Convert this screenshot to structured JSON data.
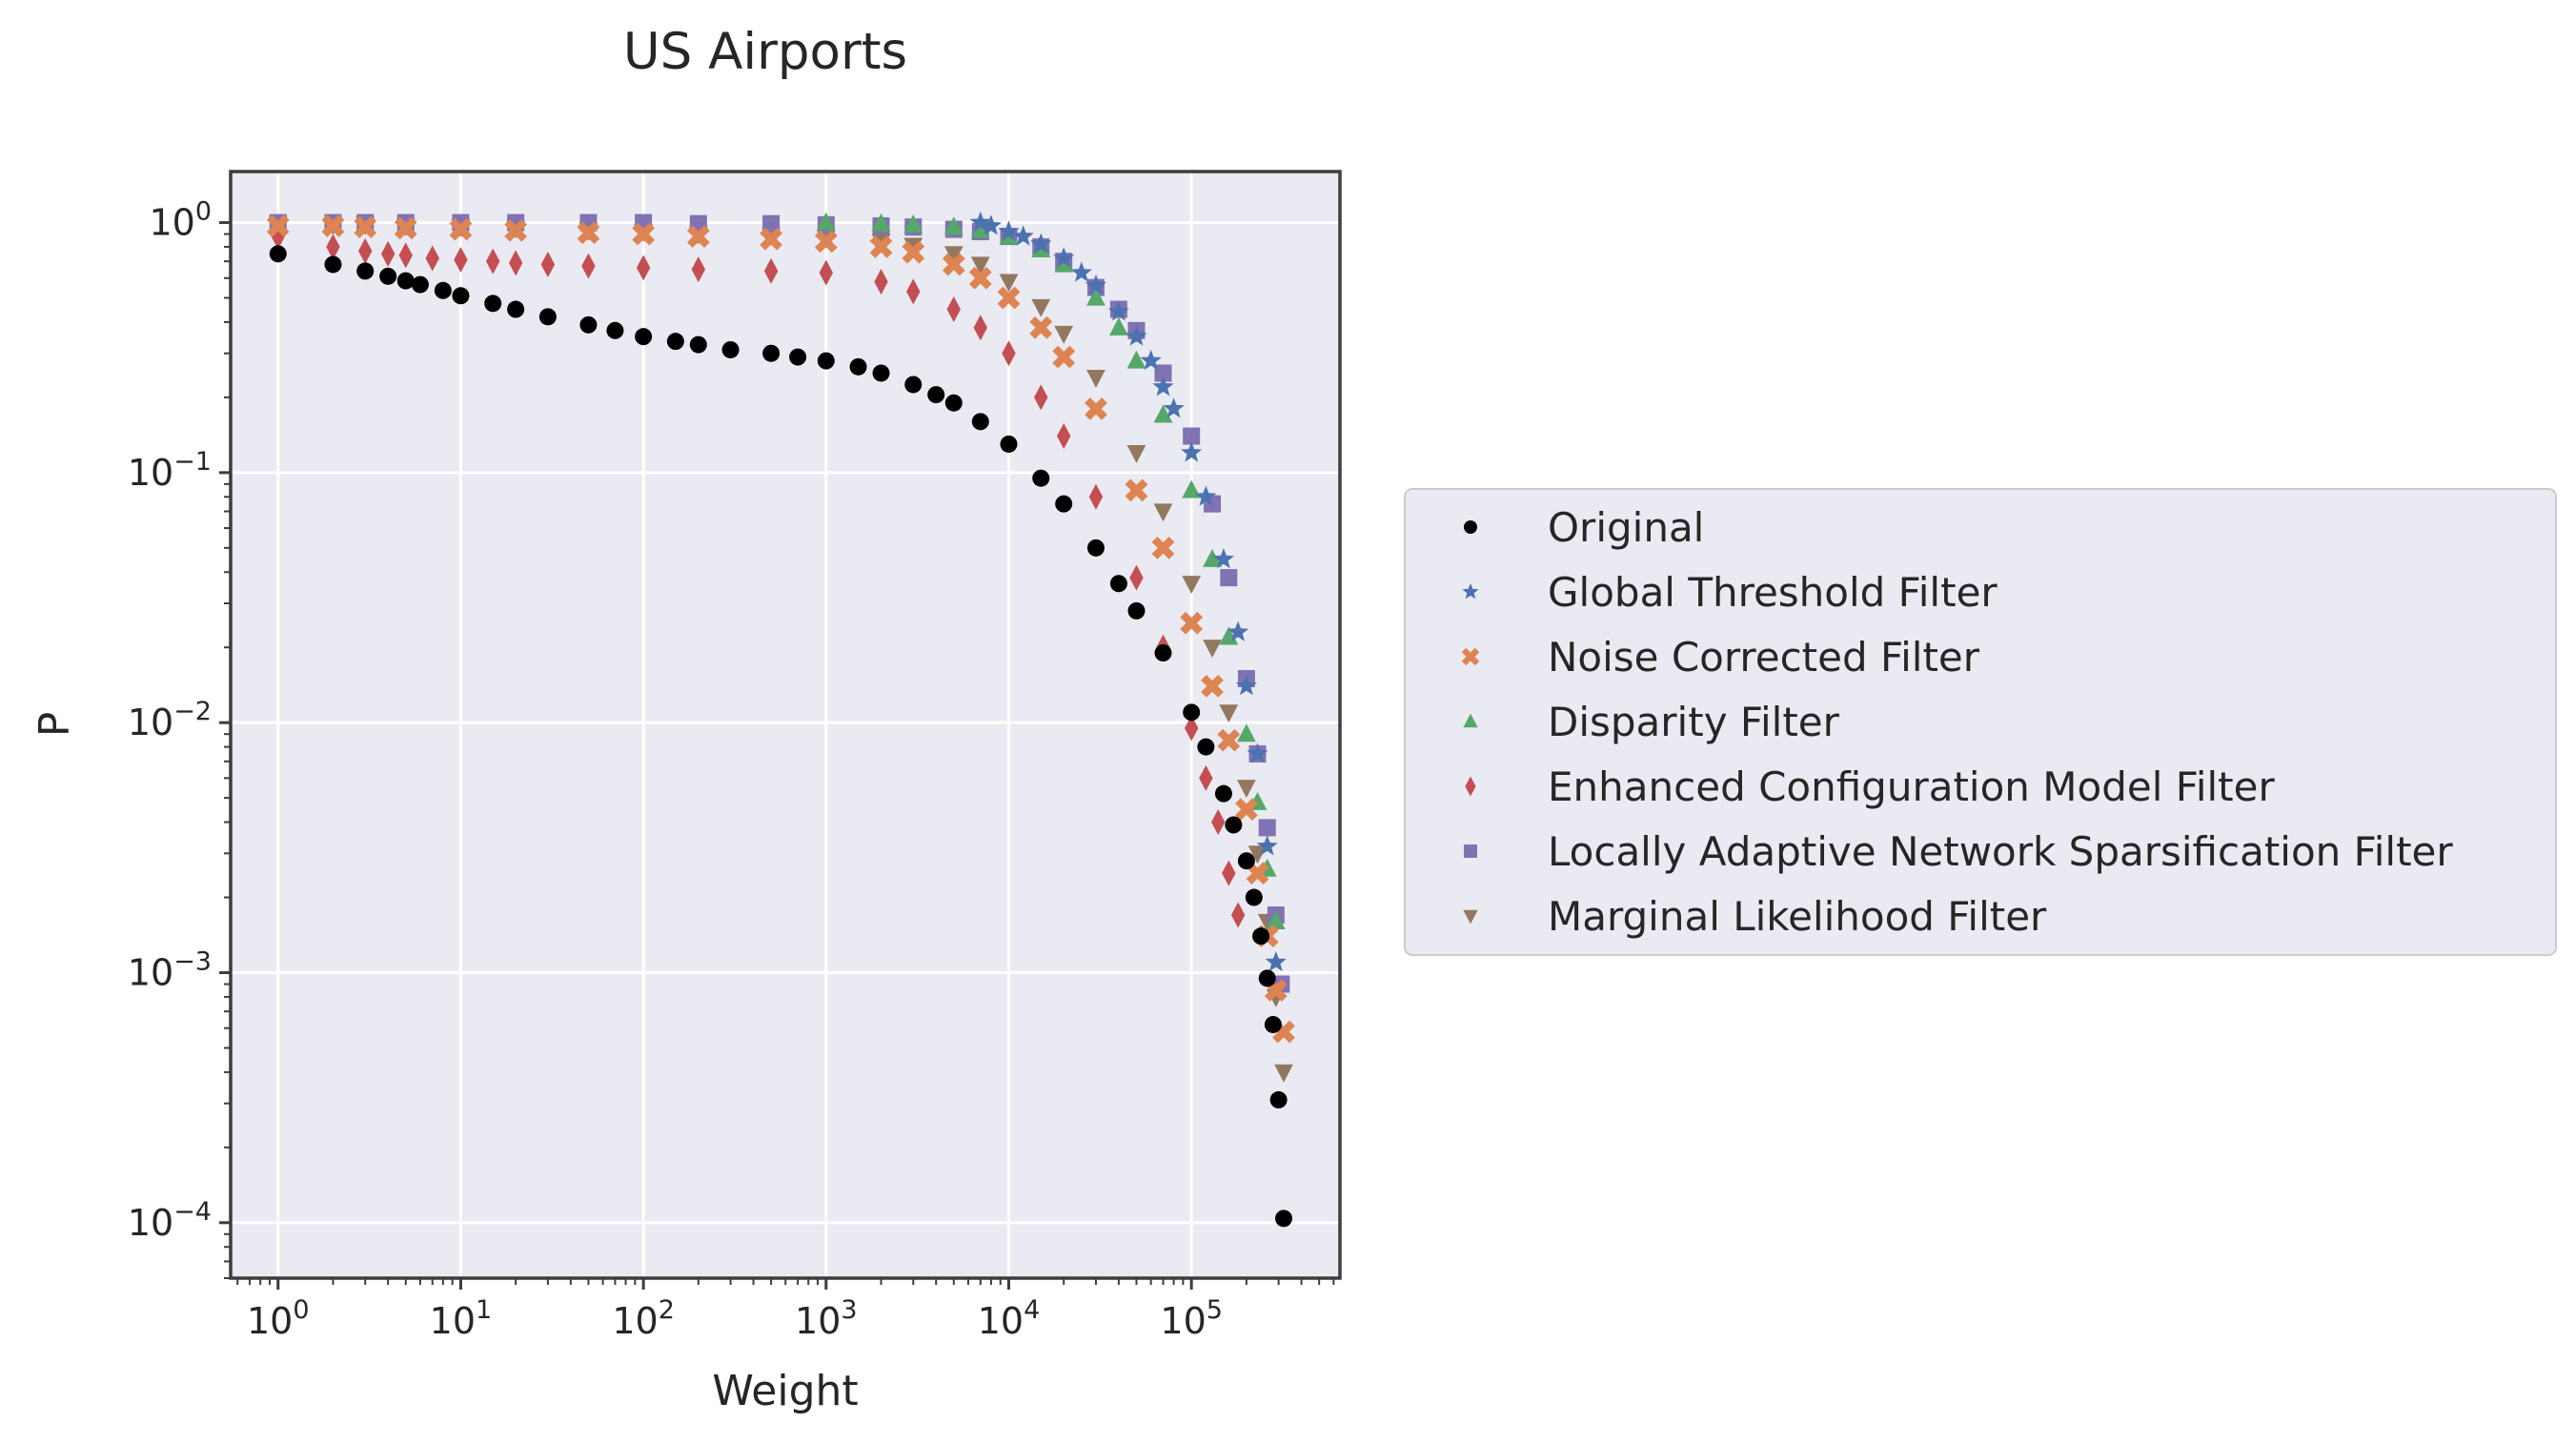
{
  "chart_data": {
    "type": "scatter",
    "title": "US Airports",
    "xlabel": "Weight",
    "ylabel": "P",
    "xscale": "log",
    "yscale": "log",
    "xlim": [
      0.55,
      650000
    ],
    "ylim": [
      6e-05,
      1.6
    ],
    "grid": true,
    "legend_position": "outside-right",
    "x_ticks": [
      {
        "value": 1,
        "base": "10",
        "exp": "0"
      },
      {
        "value": 10,
        "base": "10",
        "exp": "1"
      },
      {
        "value": 100,
        "base": "10",
        "exp": "2"
      },
      {
        "value": 1000,
        "base": "10",
        "exp": "3"
      },
      {
        "value": 10000,
        "base": "10",
        "exp": "4"
      },
      {
        "value": 100000,
        "base": "10",
        "exp": "5"
      }
    ],
    "y_ticks": [
      {
        "value": 1,
        "base": "10",
        "exp": "0"
      },
      {
        "value": 0.1,
        "base": "10",
        "exp": "−1"
      },
      {
        "value": 0.01,
        "base": "10",
        "exp": "−2"
      },
      {
        "value": 0.001,
        "base": "10",
        "exp": "−3"
      },
      {
        "value": 0.0001,
        "base": "10",
        "exp": "−4"
      }
    ],
    "series": [
      {
        "name": "Original",
        "marker": "circle",
        "color": "#000000",
        "x": [
          1,
          2,
          3,
          4,
          5,
          6,
          8,
          10,
          15,
          20,
          30,
          50,
          70,
          100,
          150,
          200,
          300,
          500,
          700,
          1000,
          1500,
          2000,
          3000,
          4000,
          5000,
          7000,
          10000,
          15000,
          20000,
          30000,
          40000,
          50000,
          70000,
          100000,
          120000,
          150000,
          170000,
          200000,
          220000,
          240000,
          260000,
          280000,
          300000,
          320000
        ],
        "y": [
          0.75,
          0.68,
          0.64,
          0.61,
          0.585,
          0.565,
          0.535,
          0.51,
          0.475,
          0.45,
          0.42,
          0.39,
          0.37,
          0.35,
          0.335,
          0.325,
          0.31,
          0.3,
          0.29,
          0.28,
          0.265,
          0.25,
          0.225,
          0.205,
          0.19,
          0.16,
          0.13,
          0.095,
          0.075,
          0.05,
          0.036,
          0.028,
          0.019,
          0.011,
          0.008,
          0.0052,
          0.0039,
          0.0028,
          0.002,
          0.0014,
          0.00095,
          0.00062,
          0.00031,
          0.000104
        ]
      },
      {
        "name": "Global Threshold Filter",
        "marker": "star",
        "color": "#4c72b0",
        "x": [
          7000,
          8000,
          10000,
          12000,
          15000,
          20000,
          25000,
          30000,
          40000,
          50000,
          60000,
          70000,
          80000,
          100000,
          120000,
          150000,
          180000,
          200000,
          230000,
          260000,
          290000
        ],
        "y": [
          1.0,
          0.97,
          0.92,
          0.88,
          0.82,
          0.72,
          0.63,
          0.56,
          0.44,
          0.35,
          0.28,
          0.22,
          0.18,
          0.12,
          0.08,
          0.045,
          0.023,
          0.014,
          0.0075,
          0.0032,
          0.0011
        ]
      },
      {
        "name": "Noise Corrected Filter",
        "marker": "x",
        "color": "#dd8452",
        "x": [
          1,
          2,
          3,
          5,
          10,
          20,
          50,
          100,
          200,
          500,
          1000,
          2000,
          3000,
          5000,
          7000,
          10000,
          15000,
          20000,
          30000,
          50000,
          70000,
          100000,
          130000,
          160000,
          200000,
          230000,
          260000,
          290000,
          320000
        ],
        "y": [
          0.97,
          0.97,
          0.96,
          0.95,
          0.94,
          0.93,
          0.91,
          0.9,
          0.88,
          0.86,
          0.84,
          0.8,
          0.76,
          0.68,
          0.6,
          0.5,
          0.38,
          0.29,
          0.18,
          0.085,
          0.05,
          0.025,
          0.014,
          0.0085,
          0.0045,
          0.0025,
          0.0014,
          0.00085,
          0.00058
        ]
      },
      {
        "name": "Disparity Filter",
        "marker": "triangle-up",
        "color": "#55a868",
        "x": [
          1000,
          2000,
          3000,
          5000,
          7000,
          10000,
          15000,
          20000,
          30000,
          40000,
          50000,
          70000,
          100000,
          130000,
          160000,
          200000,
          230000,
          260000,
          290000
        ],
        "y": [
          1.0,
          0.99,
          0.98,
          0.96,
          0.93,
          0.88,
          0.78,
          0.68,
          0.5,
          0.38,
          0.28,
          0.17,
          0.085,
          0.045,
          0.022,
          0.009,
          0.0048,
          0.0026,
          0.0016
        ]
      },
      {
        "name": "Enhanced Configuration Model Filter",
        "marker": "diamond",
        "color": "#c44e52",
        "x": [
          1,
          2,
          3,
          4,
          5,
          7,
          10,
          15,
          20,
          30,
          50,
          100,
          200,
          500,
          1000,
          2000,
          3000,
          5000,
          7000,
          10000,
          15000,
          20000,
          30000,
          50000,
          70000,
          100000,
          120000,
          140000,
          160000,
          180000
        ],
        "y": [
          0.88,
          0.8,
          0.77,
          0.75,
          0.74,
          0.72,
          0.71,
          0.7,
          0.69,
          0.68,
          0.67,
          0.66,
          0.65,
          0.64,
          0.63,
          0.58,
          0.53,
          0.45,
          0.38,
          0.3,
          0.2,
          0.14,
          0.08,
          0.038,
          0.02,
          0.0095,
          0.006,
          0.004,
          0.0025,
          0.0017
        ]
      },
      {
        "name": "Locally Adaptive Network Sparsification Filter",
        "marker": "square",
        "color": "#8172b3",
        "x": [
          1,
          2,
          3,
          5,
          10,
          20,
          50,
          100,
          200,
          500,
          1000,
          2000,
          3000,
          5000,
          7000,
          10000,
          15000,
          20000,
          30000,
          40000,
          50000,
          70000,
          100000,
          130000,
          160000,
          200000,
          230000,
          260000,
          290000,
          310000
        ],
        "y": [
          1.0,
          1.0,
          1.0,
          1.0,
          1.0,
          1.0,
          1.0,
          1.0,
          0.99,
          0.99,
          0.98,
          0.97,
          0.96,
          0.94,
          0.92,
          0.88,
          0.8,
          0.7,
          0.55,
          0.45,
          0.37,
          0.25,
          0.14,
          0.075,
          0.038,
          0.015,
          0.0075,
          0.0038,
          0.0017,
          0.0009
        ]
      },
      {
        "name": "Marginal Likelihood Filter",
        "marker": "triangle-down",
        "color": "#937860",
        "x": [
          1,
          2,
          3,
          5,
          10,
          20,
          50,
          100,
          200,
          500,
          1000,
          2000,
          3000,
          5000,
          7000,
          10000,
          15000,
          20000,
          30000,
          50000,
          70000,
          100000,
          130000,
          160000,
          200000,
          230000,
          260000,
          290000,
          320000
        ],
        "y": [
          0.99,
          0.98,
          0.98,
          0.97,
          0.96,
          0.95,
          0.93,
          0.92,
          0.9,
          0.89,
          0.87,
          0.84,
          0.81,
          0.75,
          0.68,
          0.58,
          0.46,
          0.36,
          0.24,
          0.12,
          0.07,
          0.036,
          0.02,
          0.011,
          0.0055,
          0.003,
          0.0016,
          0.0008,
          0.0004
        ]
      }
    ]
  }
}
